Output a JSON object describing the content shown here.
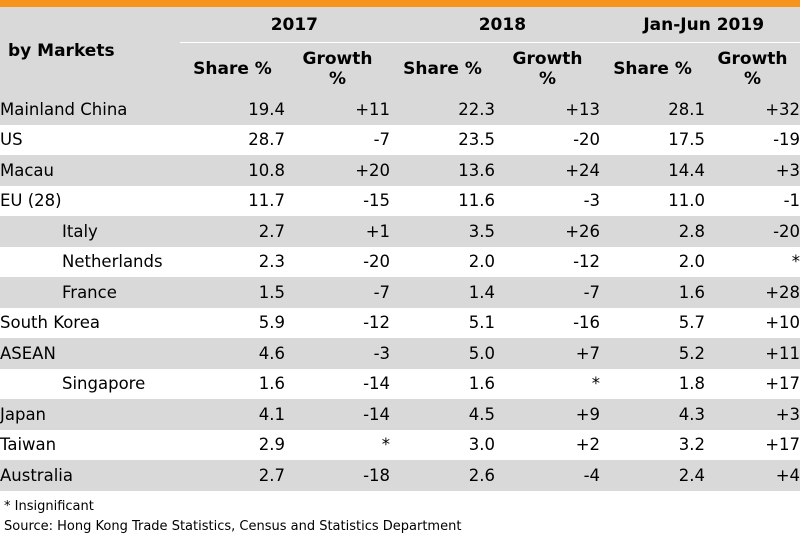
{
  "header": {
    "market_label": "by Markets",
    "years": [
      "2017",
      "2018",
      "Jan-Jun 2019"
    ],
    "share_label": "Share %",
    "growth_label_line1": "Growth",
    "growth_label_line2": "%"
  },
  "rows": [
    {
      "market": "Mainland China",
      "indent": false,
      "v": [
        "19.4",
        "+11",
        "22.3",
        "+13",
        "28.1",
        "+32"
      ]
    },
    {
      "market": "US",
      "indent": false,
      "v": [
        "28.7",
        "-7",
        "23.5",
        "-20",
        "17.5",
        "-19"
      ]
    },
    {
      "market": "Macau",
      "indent": false,
      "v": [
        "10.8",
        "+20",
        "13.6",
        "+24",
        "14.4",
        "+3"
      ]
    },
    {
      "market": "EU (28)",
      "indent": false,
      "v": [
        "11.7",
        "-15",
        "11.6",
        "-3",
        "11.0",
        "-1"
      ]
    },
    {
      "market": "Italy",
      "indent": true,
      "v": [
        "2.7",
        "+1",
        "3.5",
        "+26",
        "2.8",
        "-20"
      ]
    },
    {
      "market": "Netherlands",
      "indent": true,
      "v": [
        "2.3",
        "-20",
        "2.0",
        "-12",
        "2.0",
        "*"
      ]
    },
    {
      "market": "France",
      "indent": true,
      "v": [
        "1.5",
        "-7",
        "1.4",
        "-7",
        "1.6",
        "+28"
      ]
    },
    {
      "market": "South Korea",
      "indent": false,
      "v": [
        "5.9",
        "-12",
        "5.1",
        "-16",
        "5.7",
        "+10"
      ]
    },
    {
      "market": "ASEAN",
      "indent": false,
      "v": [
        "4.6",
        "-3",
        "5.0",
        "+7",
        "5.2",
        "+11"
      ]
    },
    {
      "market": "Singapore",
      "indent": true,
      "v": [
        "1.6",
        "-14",
        "1.6",
        "*",
        "1.8",
        "+17"
      ]
    },
    {
      "market": "Japan",
      "indent": false,
      "v": [
        "4.1",
        "-14",
        "4.5",
        "+9",
        "4.3",
        "+3"
      ]
    },
    {
      "market": "Taiwan",
      "indent": false,
      "v": [
        "2.9",
        "*",
        "3.0",
        "+2",
        "3.2",
        "+17"
      ]
    },
    {
      "market": "Australia",
      "indent": false,
      "v": [
        "2.7",
        "-18",
        "2.6",
        "-4",
        "2.4",
        "+4"
      ]
    }
  ],
  "footnote": "* Insignificant",
  "source": "Source: Hong Kong Trade Statistics, Census and Statistics Department",
  "colors": {
    "accent_bar": "#f7941d",
    "shade": "#d9d9d9"
  }
}
